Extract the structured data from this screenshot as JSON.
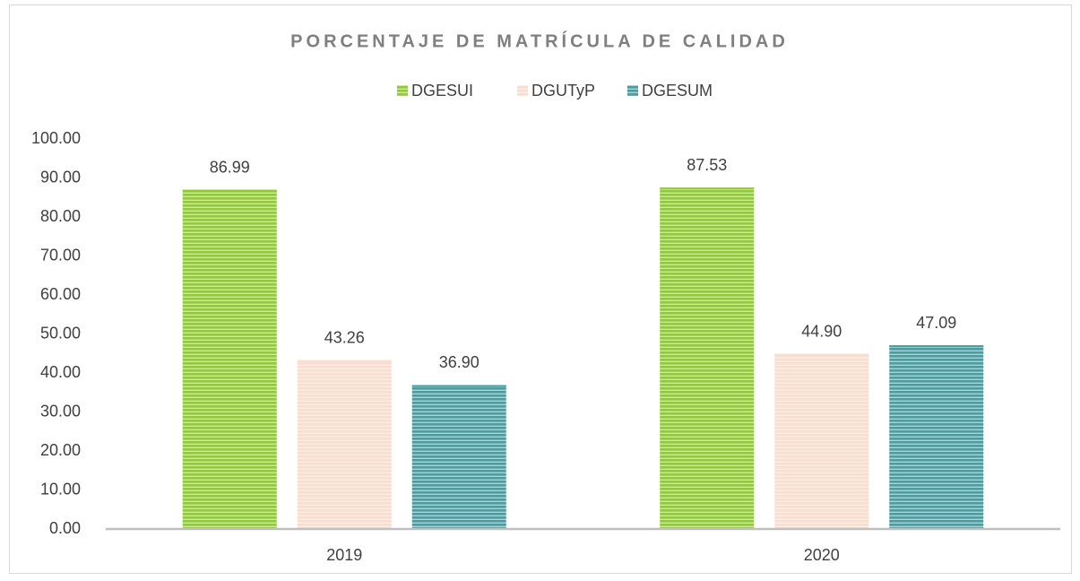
{
  "chart_data": {
    "type": "bar",
    "title": "PORCENTAJE DE MATRÍCULA DE CALIDAD",
    "categories": [
      "2019",
      "2020"
    ],
    "series": [
      {
        "name": "DGESUI",
        "color": "#92c83e",
        "values": [
          86.99,
          87.53
        ],
        "value_labels": [
          "86.99",
          "87.53"
        ]
      },
      {
        "name": "DGUTyP",
        "color": "#f8ddd0",
        "values": [
          43.26,
          44.9
        ],
        "value_labels": [
          "43.26",
          "44.90"
        ]
      },
      {
        "name": "DGESUM",
        "color": "#4f9a9c",
        "values": [
          36.9,
          47.09
        ],
        "value_labels": [
          "36.90",
          "47.09"
        ]
      }
    ],
    "ylim": [
      0,
      100
    ],
    "yticks": [
      {
        "value": 0,
        "label": "0.00"
      },
      {
        "value": 10,
        "label": "10.00"
      },
      {
        "value": 20,
        "label": "20.00"
      },
      {
        "value": 30,
        "label": "30.00"
      },
      {
        "value": 40,
        "label": "40.00"
      },
      {
        "value": 50,
        "label": "50.00"
      },
      {
        "value": 60,
        "label": "60.00"
      },
      {
        "value": 70,
        "label": "70.00"
      },
      {
        "value": 80,
        "label": "80.00"
      },
      {
        "value": 90,
        "label": "90.00"
      },
      {
        "value": 100,
        "label": "100.00"
      }
    ],
    "grid": false,
    "legend": "top"
  }
}
